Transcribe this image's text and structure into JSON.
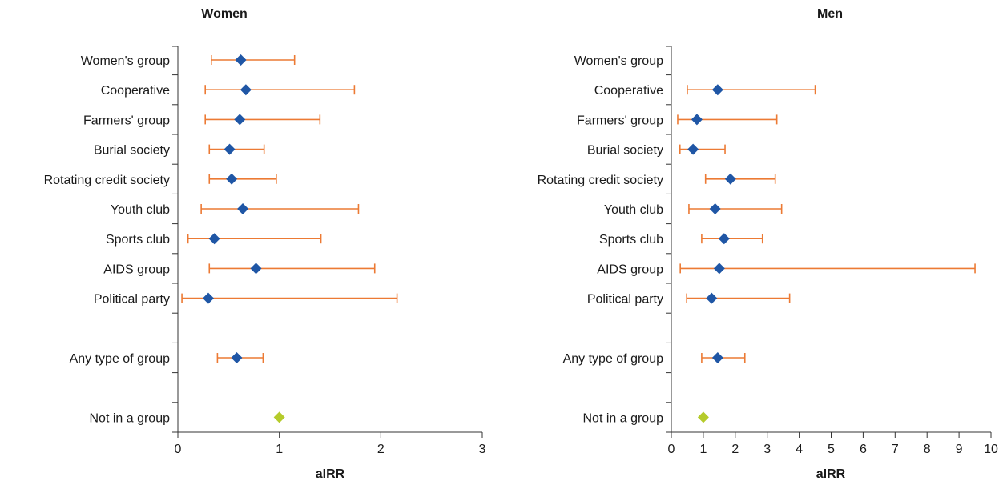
{
  "chart_data": [
    {
      "type": "forest",
      "title": "Women",
      "xlabel": "aIRR",
      "xlim": [
        0,
        3
      ],
      "xticks": [
        "0",
        "1",
        "2",
        "3"
      ],
      "categories": [
        "Women's group",
        "Cooperative",
        "Farmers' group",
        "Burial society",
        "Rotating credit society",
        "Youth club",
        "Sports club",
        "AIDS group",
        "Political party",
        "",
        "Any type of group",
        "",
        "Not in a group"
      ],
      "points": [
        {
          "category": "Women's group",
          "value": 0.62,
          "lower": 0.33,
          "upper": 1.15
        },
        {
          "category": "Cooperative",
          "value": 0.67,
          "lower": 0.27,
          "upper": 1.74
        },
        {
          "category": "Farmers' group",
          "value": 0.61,
          "lower": 0.27,
          "upper": 1.4
        },
        {
          "category": "Burial society",
          "value": 0.51,
          "lower": 0.31,
          "upper": 0.85
        },
        {
          "category": "Rotating credit society",
          "value": 0.53,
          "lower": 0.31,
          "upper": 0.97
        },
        {
          "category": "Youth club",
          "value": 0.64,
          "lower": 0.23,
          "upper": 1.78
        },
        {
          "category": "Sports club",
          "value": 0.36,
          "lower": 0.1,
          "upper": 1.41
        },
        {
          "category": "AIDS group",
          "value": 0.77,
          "lower": 0.31,
          "upper": 1.94
        },
        {
          "category": "Political party",
          "value": 0.3,
          "lower": 0.04,
          "upper": 2.16
        },
        {
          "category": "Any type of group",
          "value": 0.58,
          "lower": 0.39,
          "upper": 0.84
        },
        {
          "category": "Not in a group",
          "value": 1.0,
          "reference": true
        }
      ]
    },
    {
      "type": "forest",
      "title": "Men",
      "xlabel": "aIRR",
      "xlim": [
        0,
        10
      ],
      "xticks": [
        "0",
        "1",
        "2",
        "3",
        "4",
        "5",
        "6",
        "7",
        "8",
        "9",
        "10"
      ],
      "categories": [
        "Women's group",
        "Cooperative",
        "Farmers' group",
        "Burial society",
        "Rotating credit society",
        "Youth club",
        "Sports club",
        "AIDS group",
        "Political party",
        "",
        "Any type of group",
        "",
        "Not in a group"
      ],
      "points": [
        {
          "category": "Cooperative",
          "value": 1.45,
          "lower": 0.5,
          "upper": 4.5
        },
        {
          "category": "Farmers' group",
          "value": 0.8,
          "lower": 0.2,
          "upper": 3.3
        },
        {
          "category": "Burial society",
          "value": 0.68,
          "lower": 0.27,
          "upper": 1.68
        },
        {
          "category": "Rotating credit society",
          "value": 1.85,
          "lower": 1.07,
          "upper": 3.25
        },
        {
          "category": "Youth club",
          "value": 1.37,
          "lower": 0.55,
          "upper": 3.45
        },
        {
          "category": "Sports club",
          "value": 1.65,
          "lower": 0.95,
          "upper": 2.85
        },
        {
          "category": "AIDS group",
          "value": 1.5,
          "lower": 0.28,
          "upper": 9.5
        },
        {
          "category": "Political party",
          "value": 1.26,
          "lower": 0.48,
          "upper": 3.7
        },
        {
          "category": "Any type of group",
          "value": 1.45,
          "lower": 0.95,
          "upper": 2.3
        },
        {
          "category": "Not in a group",
          "value": 1.0,
          "reference": true
        }
      ]
    }
  ],
  "colors": {
    "point": "#1f56a5",
    "reference": "#b5cb2b",
    "ci": "#ec7a34",
    "axis": "#333333"
  }
}
